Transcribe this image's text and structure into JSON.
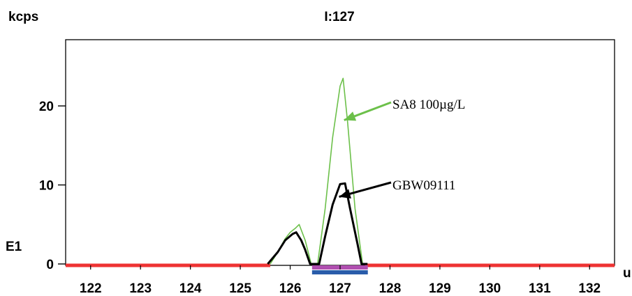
{
  "chart_data": {
    "type": "line",
    "title": "I:127",
    "ylabel": "kcps",
    "xlabel": "u",
    "side_label": "E1",
    "xlim": [
      121.5,
      132.5
    ],
    "ylim": [
      0,
      27.5
    ],
    "x_ticks": [
      122,
      123,
      124,
      125,
      126,
      127,
      128,
      129,
      130,
      131,
      132
    ],
    "y_ticks": [
      0,
      10,
      20
    ],
    "grid": false,
    "series": [
      {
        "name": "SA8 100µg/L",
        "color": "#6cc04a",
        "points": [
          [
            125.6,
            0
          ],
          [
            125.75,
            1.5
          ],
          [
            125.9,
            3.2
          ],
          [
            126.0,
            4.0
          ],
          [
            126.1,
            4.5
          ],
          [
            126.18,
            5.0
          ],
          [
            126.3,
            3.0
          ],
          [
            126.42,
            0
          ],
          [
            126.55,
            0
          ],
          [
            126.7,
            7
          ],
          [
            126.85,
            16
          ],
          [
            127.0,
            22.5
          ],
          [
            127.06,
            23.5
          ],
          [
            127.15,
            18
          ],
          [
            127.3,
            7
          ],
          [
            127.45,
            0
          ]
        ]
      },
      {
        "name": "GBW09111",
        "color": "#000000",
        "points": [
          [
            125.55,
            0
          ],
          [
            125.75,
            1.5
          ],
          [
            125.9,
            3.0
          ],
          [
            126.05,
            3.8
          ],
          [
            126.12,
            4.0
          ],
          [
            126.22,
            3.0
          ],
          [
            126.3,
            1.8
          ],
          [
            126.4,
            0
          ],
          [
            126.58,
            0
          ],
          [
            126.7,
            3.5
          ],
          [
            126.85,
            7.5
          ],
          [
            127.0,
            10.1
          ],
          [
            127.1,
            10.2
          ],
          [
            127.2,
            7
          ],
          [
            127.35,
            2.5
          ],
          [
            127.43,
            0
          ],
          [
            127.55,
            0
          ]
        ]
      }
    ],
    "annotations": [
      {
        "text": "SA8 100µg/L",
        "series": "SA8 100µg/L",
        "points_to": [
          127.08,
          18.2
        ]
      },
      {
        "text": "GBW09111",
        "series": "GBW09111",
        "points_to": [
          126.98,
          8.5
        ]
      }
    ],
    "baseline_segments": [
      {
        "x": [
          121.5,
          125.6
        ],
        "color": "#ee3333"
      },
      {
        "x": [
          127.5,
          132.5
        ],
        "color": "#ee3333"
      }
    ],
    "integration_bars": [
      {
        "x": [
          126.55,
          127.5
        ],
        "color": "#b04fb0"
      },
      {
        "x": [
          126.55,
          127.5
        ],
        "color": "#2a5caa"
      }
    ]
  }
}
